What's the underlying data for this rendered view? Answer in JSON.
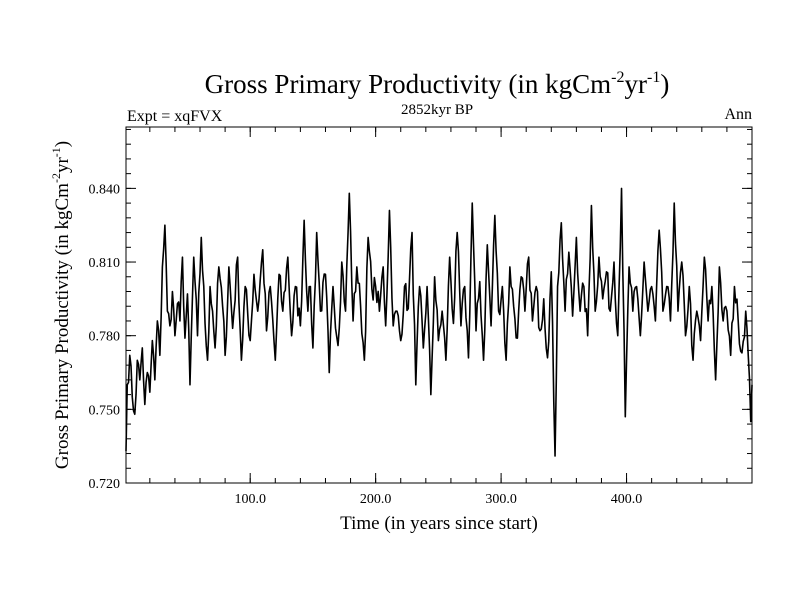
{
  "chart_data": {
    "type": "line",
    "title_main": "Gross Primary Productivity (in kgCm",
    "title_sup1": "-2",
    "title_mid": "yr",
    "title_sup2": "-1",
    "title_end": ")",
    "subtitle_left": "Expt = xqFVX",
    "subtitle_center": "2852kyr BP",
    "subtitle_right": "Ann",
    "xlabel": "Time (in years since start)",
    "ylabel_main": "Gross Primary Productivity (in kgCm",
    "ylabel_sup1": "-2",
    "ylabel_mid": "yr",
    "ylabel_sup2": "-1",
    "ylabel_end": ")",
    "xlim": [
      1,
      500
    ],
    "ylim": [
      0.72,
      0.865
    ],
    "x_ticks": [
      {
        "value": 100,
        "label": "100.0"
      },
      {
        "value": 200,
        "label": "200.0"
      },
      {
        "value": 300,
        "label": "300.0"
      },
      {
        "value": 400,
        "label": "400.0"
      }
    ],
    "x_minor_step": 20,
    "y_ticks": [
      {
        "value": 0.72,
        "label": "0.720"
      },
      {
        "value": 0.75,
        "label": "0.750"
      },
      {
        "value": 0.78,
        "label": "0.780"
      },
      {
        "value": 0.81,
        "label": "0.810"
      },
      {
        "value": 0.84,
        "label": "0.840"
      }
    ],
    "y_minor_step": 0.006,
    "series": [
      {
        "name": "Gross Primary Productivity",
        "color": "#000000",
        "anchors": [
          [
            1,
            0.733
          ],
          [
            2,
            0.76
          ],
          [
            4,
            0.772
          ],
          [
            6,
            0.755
          ],
          [
            8,
            0.748
          ],
          [
            10,
            0.77
          ],
          [
            12,
            0.762
          ],
          [
            14,
            0.775
          ],
          [
            16,
            0.752
          ],
          [
            18,
            0.765
          ],
          [
            20,
            0.757
          ],
          [
            22,
            0.778
          ],
          [
            24,
            0.762
          ],
          [
            26,
            0.786
          ],
          [
            28,
            0.772
          ],
          [
            30,
            0.808
          ],
          [
            32,
            0.825
          ],
          [
            34,
            0.79
          ],
          [
            36,
            0.784
          ],
          [
            38,
            0.798
          ],
          [
            40,
            0.78
          ],
          [
            42,
            0.793
          ],
          [
            44,
            0.786
          ],
          [
            46,
            0.812
          ],
          [
            48,
            0.779
          ],
          [
            50,
            0.797
          ],
          [
            52,
            0.76
          ],
          [
            55,
            0.812
          ],
          [
            58,
            0.78
          ],
          [
            61,
            0.82
          ],
          [
            64,
            0.785
          ],
          [
            66,
            0.77
          ],
          [
            68,
            0.8
          ],
          [
            70,
            0.79
          ],
          [
            72,
            0.775
          ],
          [
            75,
            0.808
          ],
          [
            78,
            0.792
          ],
          [
            80,
            0.772
          ],
          [
            83,
            0.808
          ],
          [
            86,
            0.783
          ],
          [
            90,
            0.812
          ],
          [
            93,
            0.77
          ],
          [
            96,
            0.8
          ],
          [
            100,
            0.778
          ],
          [
            103,
            0.805
          ],
          [
            106,
            0.79
          ],
          [
            110,
            0.815
          ],
          [
            113,
            0.782
          ],
          [
            116,
            0.8
          ],
          [
            120,
            0.77
          ],
          [
            123,
            0.805
          ],
          [
            126,
            0.79
          ],
          [
            130,
            0.812
          ],
          [
            133,
            0.78
          ],
          [
            136,
            0.8
          ],
          [
            140,
            0.784
          ],
          [
            143,
            0.827
          ],
          [
            146,
            0.79
          ],
          [
            148,
            0.8
          ],
          [
            150,
            0.775
          ],
          [
            153,
            0.822
          ],
          [
            156,
            0.79
          ],
          [
            160,
            0.805
          ],
          [
            163,
            0.765
          ],
          [
            166,
            0.8
          ],
          [
            170,
            0.776
          ],
          [
            173,
            0.81
          ],
          [
            176,
            0.79
          ],
          [
            179,
            0.838
          ],
          [
            182,
            0.786
          ],
          [
            185,
            0.808
          ],
          [
            188,
            0.792
          ],
          [
            191,
            0.77
          ],
          [
            194,
            0.82
          ],
          [
            197,
            0.799
          ],
          [
            200,
            0.8
          ],
          [
            203,
            0.79
          ],
          [
            206,
            0.808
          ],
          [
            208,
            0.784
          ],
          [
            211,
            0.831
          ],
          [
            214,
            0.784
          ],
          [
            217,
            0.79
          ],
          [
            220,
            0.778
          ],
          [
            223,
            0.8
          ],
          [
            226,
            0.791
          ],
          [
            229,
            0.822
          ],
          [
            232,
            0.76
          ],
          [
            235,
            0.8
          ],
          [
            238,
            0.775
          ],
          [
            241,
            0.8
          ],
          [
            244,
            0.756
          ],
          [
            247,
            0.804
          ],
          [
            250,
            0.778
          ],
          [
            253,
            0.79
          ],
          [
            256,
            0.77
          ],
          [
            259,
            0.812
          ],
          [
            262,
            0.785
          ],
          [
            265,
            0.822
          ],
          [
            268,
            0.784
          ],
          [
            271,
            0.8
          ],
          [
            274,
            0.771
          ],
          [
            277,
            0.834
          ],
          [
            280,
            0.782
          ],
          [
            283,
            0.802
          ],
          [
            286,
            0.77
          ],
          [
            289,
            0.817
          ],
          [
            292,
            0.784
          ],
          [
            295,
            0.829
          ],
          [
            298,
            0.79
          ],
          [
            301,
            0.8
          ],
          [
            304,
            0.77
          ],
          [
            307,
            0.808
          ],
          [
            310,
            0.792
          ],
          [
            313,
            0.779
          ],
          [
            316,
            0.804
          ],
          [
            319,
            0.79
          ],
          [
            322,
            0.812
          ],
          [
            325,
            0.786
          ],
          [
            328,
            0.8
          ],
          [
            331,
            0.782
          ],
          [
            334,
            0.795
          ],
          [
            337,
            0.771
          ],
          [
            340,
            0.806
          ],
          [
            343,
            0.731
          ],
          [
            345,
            0.8
          ],
          [
            348,
            0.826
          ],
          [
            351,
            0.79
          ],
          [
            354,
            0.814
          ],
          [
            357,
            0.788
          ],
          [
            360,
            0.82
          ],
          [
            363,
            0.79
          ],
          [
            366,
            0.8
          ],
          [
            369,
            0.78
          ],
          [
            372,
            0.833
          ],
          [
            375,
            0.79
          ],
          [
            378,
            0.812
          ],
          [
            381,
            0.795
          ],
          [
            384,
            0.806
          ],
          [
            387,
            0.79
          ],
          [
            390,
            0.81
          ],
          [
            393,
            0.78
          ],
          [
            396,
            0.84
          ],
          [
            399,
            0.747
          ],
          [
            402,
            0.808
          ],
          [
            405,
            0.79
          ],
          [
            408,
            0.8
          ],
          [
            411,
            0.78
          ],
          [
            414,
            0.81
          ],
          [
            417,
            0.79
          ],
          [
            420,
            0.8
          ],
          [
            423,
            0.786
          ],
          [
            426,
            0.823
          ],
          [
            429,
            0.79
          ],
          [
            432,
            0.8
          ],
          [
            435,
            0.786
          ],
          [
            438,
            0.834
          ],
          [
            441,
            0.79
          ],
          [
            444,
            0.81
          ],
          [
            447,
            0.78
          ],
          [
            450,
            0.8
          ],
          [
            453,
            0.77
          ],
          [
            456,
            0.79
          ],
          [
            459,
            0.778
          ],
          [
            462,
            0.812
          ],
          [
            465,
            0.786
          ],
          [
            468,
            0.8
          ],
          [
            471,
            0.762
          ],
          [
            474,
            0.808
          ],
          [
            477,
            0.786
          ],
          [
            480,
            0.79
          ],
          [
            483,
            0.772
          ],
          [
            486,
            0.8
          ],
          [
            489,
            0.786
          ],
          [
            492,
            0.773
          ],
          [
            495,
            0.79
          ],
          [
            497,
            0.772
          ],
          [
            499,
            0.745
          ],
          [
            500,
            0.76
          ]
        ]
      }
    ]
  }
}
